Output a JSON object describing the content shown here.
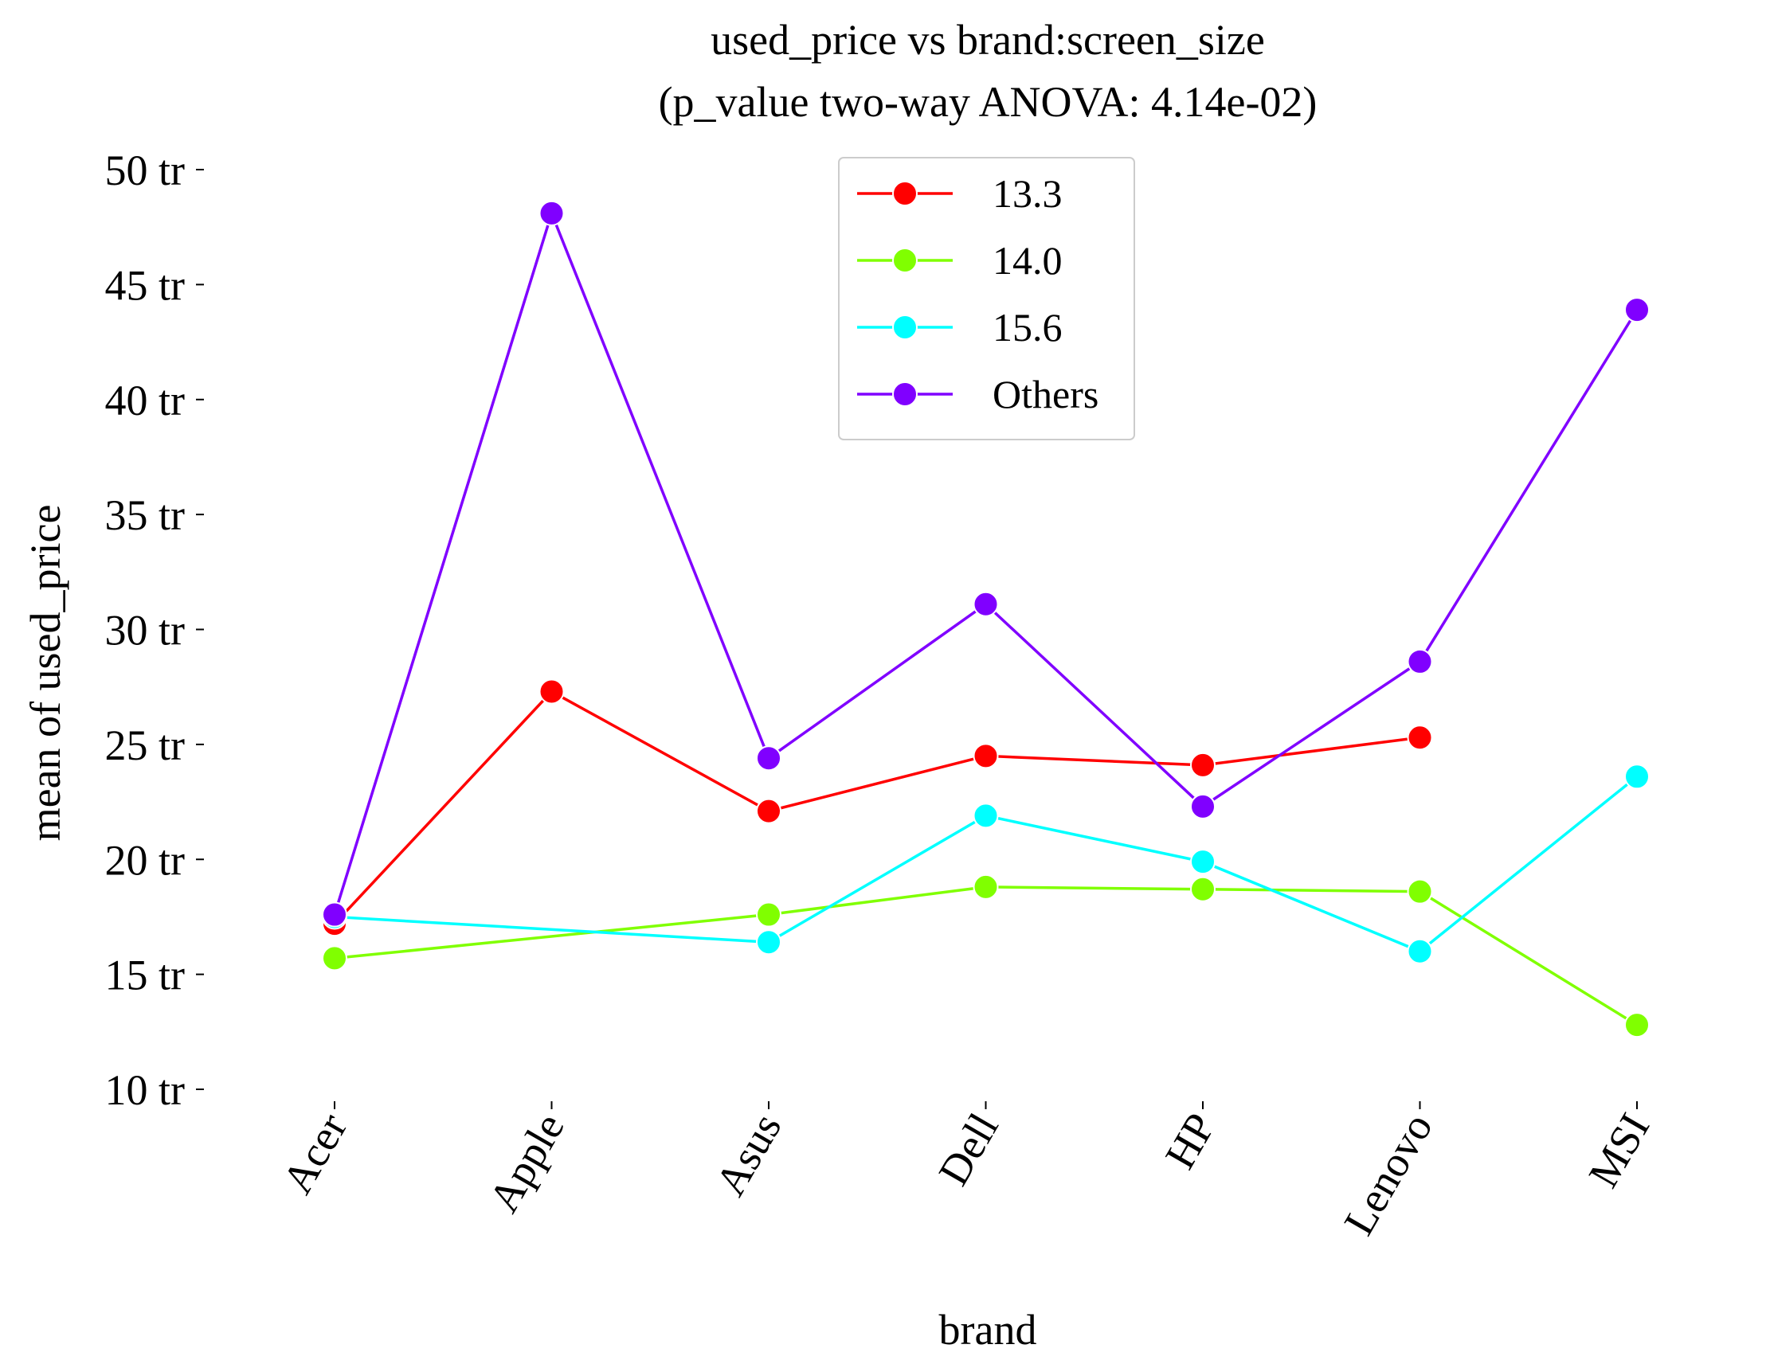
{
  "chart_data": {
    "type": "line",
    "title": "used_price vs brand:screen_size",
    "subtitle": "(p_value two-way ANOVA: 4.14e-02)",
    "xlabel": "brand",
    "ylabel": "mean of used_price",
    "categories": [
      "Acer",
      "Apple",
      "Asus",
      "Dell",
      "HP",
      "Lenovo",
      "MSI"
    ],
    "yticks": [
      10,
      15,
      20,
      25,
      30,
      35,
      40,
      45,
      50
    ],
    "ytick_suffix": " tr",
    "ylim": [
      10,
      50
    ],
    "grid": false,
    "legend_position": "top-center",
    "series": [
      {
        "name": "13.3",
        "color": "#ff0000",
        "values": [
          17.2,
          27.3,
          22.1,
          24.5,
          24.1,
          25.3,
          null
        ]
      },
      {
        "name": "14.0",
        "color": "#80ff00",
        "values": [
          15.7,
          null,
          17.6,
          18.8,
          18.7,
          18.6,
          12.8
        ]
      },
      {
        "name": "15.6",
        "color": "#00ffff",
        "values": [
          17.5,
          null,
          16.4,
          21.9,
          19.9,
          16.0,
          23.6
        ]
      },
      {
        "name": "Others",
        "color": "#8000ff",
        "values": [
          17.6,
          48.1,
          24.4,
          31.1,
          22.3,
          28.6,
          43.9
        ]
      }
    ]
  }
}
